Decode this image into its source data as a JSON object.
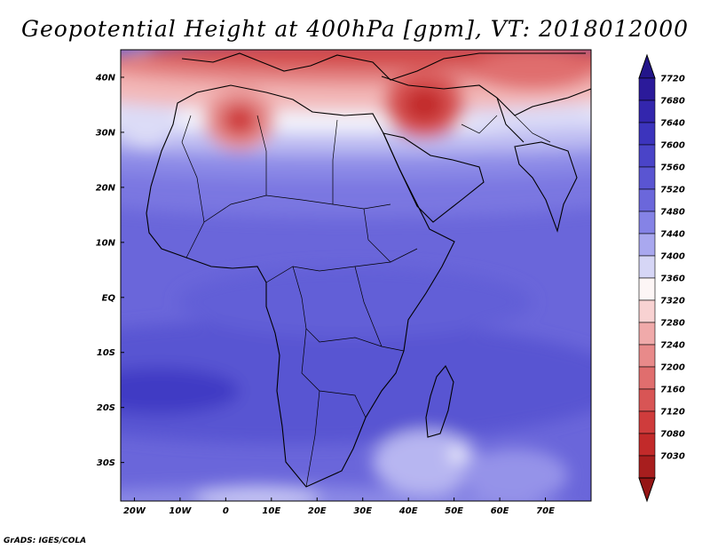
{
  "title": "Geopotential Height at 400hPa [gpm], VT: 2018012000",
  "credit": "GrADS: IGES/COLA",
  "map": {
    "lon_range": [
      -23,
      80
    ],
    "lat_range": [
      -37,
      45
    ],
    "lat_labels": [
      {
        "lat": 40,
        "text": "40N"
      },
      {
        "lat": 30,
        "text": "30N"
      },
      {
        "lat": 20,
        "text": "20N"
      },
      {
        "lat": 10,
        "text": "10N"
      },
      {
        "lat": 0,
        "text": "EQ"
      },
      {
        "lat": -10,
        "text": "10S"
      },
      {
        "lat": -20,
        "text": "20S"
      },
      {
        "lat": -30,
        "text": "30S"
      }
    ],
    "lon_labels": [
      {
        "lon": -20,
        "text": "20W"
      },
      {
        "lon": -10,
        "text": "10W"
      },
      {
        "lon": 0,
        "text": "0"
      },
      {
        "lon": 10,
        "text": "10E"
      },
      {
        "lon": 20,
        "text": "20E"
      },
      {
        "lon": 30,
        "text": "30E"
      },
      {
        "lon": 40,
        "text": "40E"
      },
      {
        "lon": 50,
        "text": "50E"
      },
      {
        "lon": 60,
        "text": "60E"
      },
      {
        "lon": 70,
        "text": "70E"
      }
    ]
  },
  "colorbar": {
    "units": "gpm",
    "levels": [
      {
        "value": "7720",
        "color": "#2b1a9a"
      },
      {
        "value": "7680",
        "color": "#3326ad"
      },
      {
        "value": "7640",
        "color": "#3c34bd"
      },
      {
        "value": "7600",
        "color": "#4a44c8"
      },
      {
        "value": "7560",
        "color": "#5a55d2"
      },
      {
        "value": "7520",
        "color": "#6b67db"
      },
      {
        "value": "7480",
        "color": "#8583e6"
      },
      {
        "value": "7440",
        "color": "#a9a8ef"
      },
      {
        "value": "7400",
        "color": "#d6d6f6"
      },
      {
        "value": "7360",
        "color": "#fdf6f6"
      },
      {
        "value": "7320",
        "color": "#f8d2d2"
      },
      {
        "value": "7280",
        "color": "#f0aaaa"
      },
      {
        "value": "7240",
        "color": "#e88a8a"
      },
      {
        "value": "7200",
        "color": "#e06e6e"
      },
      {
        "value": "7160",
        "color": "#d85555"
      },
      {
        "value": "7120",
        "color": "#cf3c3c"
      },
      {
        "value": "7080",
        "color": "#c22a2a"
      },
      {
        "value": "7030",
        "color": "#a81e1e"
      }
    ],
    "top_color": "#23158a",
    "bottom_color": "#951515"
  }
}
